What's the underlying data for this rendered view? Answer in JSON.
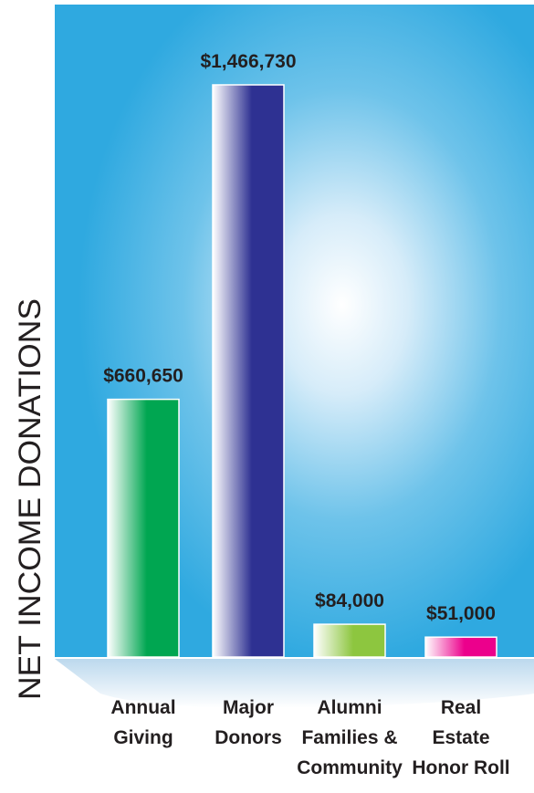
{
  "chart_data": {
    "type": "bar",
    "title": "",
    "ylabel": "NET INCOME DONATIONS",
    "xlabel": "",
    "ylim": [
      0,
      1600000
    ],
    "grid": false,
    "categories": [
      [
        "Annual",
        "Giving"
      ],
      [
        "Major",
        "Donors"
      ],
      [
        "Alumni",
        "Families &",
        "Community"
      ],
      [
        "Real",
        "Estate",
        "Honor Roll"
      ]
    ],
    "values": [
      660650,
      1466730,
      84000,
      51000
    ],
    "value_labels": [
      "$660,650",
      "$1,466,730",
      "$84,000",
      "$51,000"
    ],
    "bar_colors": [
      "#00a651",
      "#2e3192",
      "#8dc63f",
      "#ec008c"
    ]
  }
}
